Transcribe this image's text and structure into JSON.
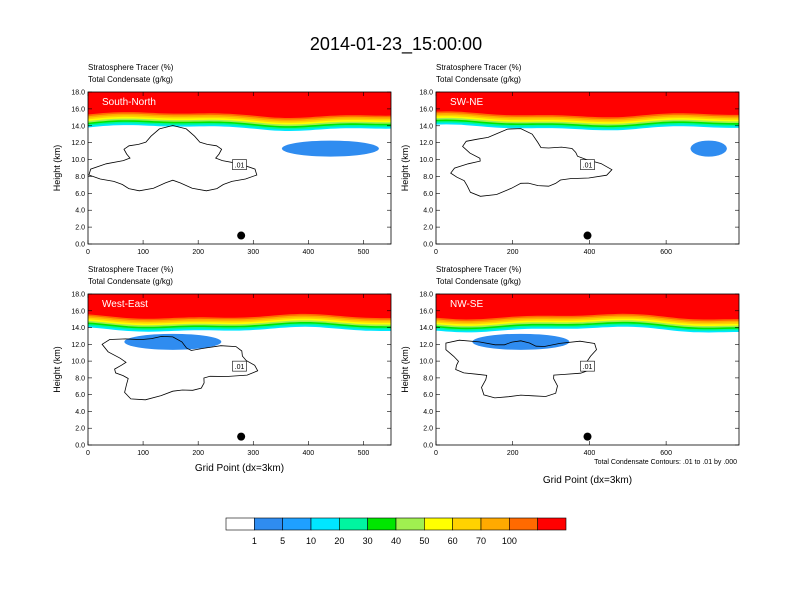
{
  "title": "2014-01-23_15:00:00",
  "footnote": "Total Condensate Contours: .01 to .01 by .000",
  "colorbar": {
    "colors": [
      "#ffffff",
      "#2f8cf0",
      "#1fa0ff",
      "#00e6ff",
      "#00f5a0",
      "#00e600",
      "#a0f050",
      "#ffff00",
      "#ffd200",
      "#ffaa00",
      "#ff6a00",
      "#ff0000"
    ],
    "labels": [
      "1",
      "5",
      "10",
      "20",
      "30",
      "40",
      "50",
      "60",
      "70",
      "100"
    ]
  },
  "chart_data": [
    {
      "type": "contour",
      "label": "South-North",
      "line1": "Stratosphere Tracer   (%)",
      "line2": "Total Condensate   (g/kg)",
      "ylabel": "Height (km)",
      "xlabel": "",
      "xlim": [
        0,
        550
      ],
      "ylim": [
        0,
        18
      ],
      "xticks": [
        "0",
        "100",
        "200",
        "300",
        "400",
        "500"
      ],
      "yticks": [
        "0.0",
        "2.0",
        "4.0",
        "6.0",
        "8.0",
        "10.0",
        "12.0",
        "14.0",
        "16.0",
        "18.0"
      ],
      "contour_label": ".01",
      "marker_x": 278
    },
    {
      "type": "contour",
      "label": "SW-NE",
      "line1": "Stratosphere Tracer   (%)",
      "line2": "Total Condensate   (g/kg)",
      "ylabel": "Height (km)",
      "xlabel": "",
      "xlim": [
        0,
        790
      ],
      "ylim": [
        0,
        18
      ],
      "xticks": [
        "0",
        "200",
        "400",
        "600"
      ],
      "yticks": [
        "0.0",
        "2.0",
        "4.0",
        "6.0",
        "8.0",
        "10.0",
        "12.0",
        "14.0",
        "16.0",
        "18.0"
      ],
      "contour_label": ".01",
      "marker_x": 395
    },
    {
      "type": "contour",
      "label": "West-East",
      "line1": "Stratosphere Tracer   (%)",
      "line2": "Total Condensate   (g/kg)",
      "ylabel": "Height (km)",
      "xlabel": "Grid Point (dx=3km)",
      "xlim": [
        0,
        550
      ],
      "ylim": [
        0,
        18
      ],
      "xticks": [
        "0",
        "100",
        "200",
        "300",
        "400",
        "500"
      ],
      "yticks": [
        "0.0",
        "2.0",
        "4.0",
        "6.0",
        "8.0",
        "10.0",
        "12.0",
        "14.0",
        "16.0",
        "18.0"
      ],
      "contour_label": ".01",
      "marker_x": 278
    },
    {
      "type": "contour",
      "label": "NW-SE",
      "line1": "Stratosphere Tracer   (%)",
      "line2": "Total Condensate   (g/kg)",
      "ylabel": "Height (km)",
      "xlabel": "Grid Point (dx=3km)",
      "xlim": [
        0,
        790
      ],
      "ylim": [
        0,
        18
      ],
      "xticks": [
        "0",
        "200",
        "400",
        "600"
      ],
      "yticks": [
        "0.0",
        "2.0",
        "4.0",
        "6.0",
        "8.0",
        "10.0",
        "12.0",
        "14.0",
        "16.0",
        "18.0"
      ],
      "contour_label": ".01",
      "marker_x": 395
    }
  ]
}
